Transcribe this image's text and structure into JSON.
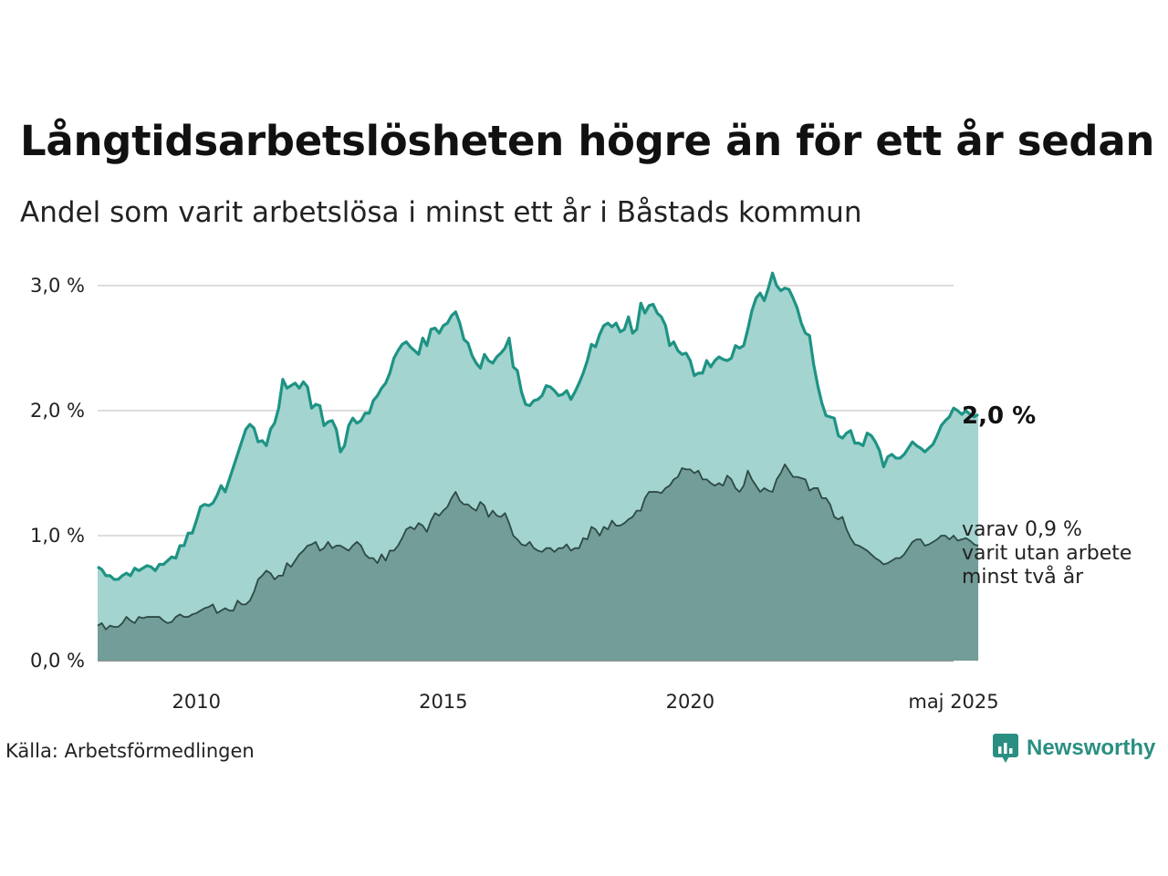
{
  "title": "Långtidsarbetslösheten högre än för ett år sedan",
  "subtitle": "Andel som varit arbetslösa i minst ett år i Båstads kommun",
  "source": "Källa: Arbetsförmedlingen",
  "brand": {
    "name": "Newsworthy",
    "icon": "newsworthy-logo-icon"
  },
  "colors": {
    "long_fill": "#a3d4cf",
    "long_line": "#1e9384",
    "very_long_fill": "#729d98",
    "very_long_line": "#2e4a45",
    "grid": "#dddddd",
    "brand": "#2a8f82"
  },
  "chart_data": {
    "type": "area",
    "x_unit": "month",
    "x_start": "2008-01",
    "x_end": "2025-05",
    "xticks": [
      {
        "date": "2010-01",
        "label": "2010"
      },
      {
        "date": "2015-01",
        "label": "2015"
      },
      {
        "date": "2020-01",
        "label": "2020"
      },
      {
        "date": "2025-05",
        "label": "maj 2025"
      }
    ],
    "ylim": [
      0,
      3.0
    ],
    "yticks": [
      {
        "value": 0,
        "label": "0,0 %"
      },
      {
        "value": 1,
        "label": "1,0 %"
      },
      {
        "value": 2,
        "label": "2,0 %"
      },
      {
        "value": 3,
        "label": "3,0 %"
      }
    ],
    "grid": true,
    "series": [
      {
        "key": "long",
        "end_label": "2,0 %",
        "values": [
          0.75,
          0.73,
          0.68,
          0.68,
          0.65,
          0.65,
          0.68,
          0.7,
          0.68,
          0.74,
          0.72,
          0.74,
          0.76,
          0.75,
          0.72,
          0.77,
          0.77,
          0.8,
          0.83,
          0.82,
          0.92,
          0.92,
          1.02,
          1.02,
          1.12,
          1.23,
          1.25,
          1.24,
          1.26,
          1.32,
          1.4,
          1.35,
          1.45,
          1.55,
          1.65,
          1.75,
          1.85,
          1.89,
          1.86,
          1.75,
          1.76,
          1.72,
          1.85,
          1.9,
          2.02,
          2.25,
          2.18,
          2.2,
          2.22,
          2.18,
          2.23,
          2.19,
          2.02,
          2.05,
          2.04,
          1.88,
          1.91,
          1.92,
          1.85,
          1.67,
          1.72,
          1.88,
          1.94,
          1.9,
          1.92,
          1.98,
          1.98,
          2.08,
          2.12,
          2.18,
          2.22,
          2.3,
          2.42,
          2.48,
          2.53,
          2.55,
          2.51,
          2.48,
          2.45,
          2.58,
          2.52,
          2.65,
          2.66,
          2.62,
          2.68,
          2.7,
          2.76,
          2.79,
          2.7,
          2.57,
          2.54,
          2.44,
          2.38,
          2.34,
          2.45,
          2.4,
          2.38,
          2.43,
          2.46,
          2.5,
          2.58,
          2.35,
          2.32,
          2.15,
          2.05,
          2.04,
          2.08,
          2.09,
          2.12,
          2.2,
          2.19,
          2.16,
          2.12,
          2.13,
          2.16,
          2.09,
          2.15,
          2.22,
          2.3,
          2.4,
          2.53,
          2.51,
          2.61,
          2.68,
          2.7,
          2.67,
          2.7,
          2.63,
          2.65,
          2.75,
          2.62,
          2.65,
          2.86,
          2.78,
          2.84,
          2.85,
          2.78,
          2.75,
          2.68,
          2.52,
          2.55,
          2.48,
          2.45,
          2.46,
          2.4,
          2.28,
          2.3,
          2.3,
          2.4,
          2.35,
          2.4,
          2.43,
          2.41,
          2.4,
          2.42,
          2.52,
          2.5,
          2.52,
          2.65,
          2.8,
          2.9,
          2.94,
          2.88,
          2.98,
          3.1,
          3.0,
          2.96,
          2.98,
          2.97,
          2.9,
          2.82,
          2.7,
          2.62,
          2.6,
          2.37,
          2.2,
          2.06,
          1.96,
          1.95,
          1.94,
          1.8,
          1.78,
          1.82,
          1.84,
          1.74,
          1.74,
          1.72,
          1.82,
          1.8,
          1.75,
          1.68,
          1.55,
          1.63,
          1.65,
          1.62,
          1.62,
          1.65,
          1.7,
          1.75,
          1.72,
          1.7,
          1.67,
          1.7,
          1.73,
          1.8,
          1.88,
          1.92,
          1.95,
          2.02,
          2.0,
          1.97,
          2.0,
          1.97,
          1.95,
          1.97
        ]
      },
      {
        "key": "very_long",
        "end_label": [
          "varav 0,9 %",
          "varit utan arbete",
          "minst två år"
        ],
        "values": [
          0.28,
          0.3,
          0.25,
          0.28,
          0.27,
          0.27,
          0.3,
          0.35,
          0.32,
          0.3,
          0.35,
          0.34,
          0.35,
          0.35,
          0.35,
          0.35,
          0.32,
          0.3,
          0.31,
          0.35,
          0.37,
          0.35,
          0.35,
          0.37,
          0.38,
          0.4,
          0.42,
          0.43,
          0.45,
          0.38,
          0.4,
          0.42,
          0.4,
          0.4,
          0.48,
          0.45,
          0.45,
          0.48,
          0.55,
          0.65,
          0.68,
          0.72,
          0.7,
          0.65,
          0.68,
          0.68,
          0.78,
          0.75,
          0.8,
          0.85,
          0.88,
          0.92,
          0.93,
          0.95,
          0.88,
          0.9,
          0.95,
          0.9,
          0.92,
          0.92,
          0.9,
          0.88,
          0.92,
          0.95,
          0.92,
          0.85,
          0.82,
          0.82,
          0.78,
          0.85,
          0.8,
          0.88,
          0.88,
          0.92,
          0.98,
          1.05,
          1.07,
          1.05,
          1.1,
          1.08,
          1.03,
          1.12,
          1.18,
          1.16,
          1.2,
          1.23,
          1.3,
          1.35,
          1.28,
          1.25,
          1.25,
          1.22,
          1.2,
          1.27,
          1.24,
          1.15,
          1.2,
          1.16,
          1.15,
          1.18,
          1.1,
          1.0,
          0.97,
          0.93,
          0.92,
          0.95,
          0.9,
          0.88,
          0.87,
          0.9,
          0.9,
          0.87,
          0.9,
          0.9,
          0.93,
          0.88,
          0.9,
          0.9,
          0.98,
          0.97,
          1.07,
          1.05,
          1.0,
          1.07,
          1.05,
          1.12,
          1.08,
          1.08,
          1.1,
          1.13,
          1.15,
          1.2,
          1.2,
          1.3,
          1.35,
          1.35,
          1.35,
          1.34,
          1.38,
          1.4,
          1.45,
          1.47,
          1.54,
          1.53,
          1.53,
          1.5,
          1.52,
          1.45,
          1.45,
          1.42,
          1.4,
          1.42,
          1.4,
          1.48,
          1.45,
          1.38,
          1.35,
          1.4,
          1.52,
          1.45,
          1.4,
          1.35,
          1.38,
          1.36,
          1.35,
          1.45,
          1.5,
          1.57,
          1.52,
          1.47,
          1.47,
          1.46,
          1.45,
          1.36,
          1.38,
          1.38,
          1.3,
          1.3,
          1.25,
          1.15,
          1.13,
          1.15,
          1.05,
          0.98,
          0.93,
          0.92,
          0.9,
          0.88,
          0.85,
          0.82,
          0.8,
          0.77,
          0.78,
          0.8,
          0.82,
          0.82,
          0.85,
          0.9,
          0.95,
          0.97,
          0.97,
          0.92,
          0.93,
          0.95,
          0.97,
          1.0,
          1.0,
          0.97,
          1.0,
          0.96,
          0.97,
          0.98,
          0.96,
          0.93,
          0.92
        ]
      }
    ]
  }
}
